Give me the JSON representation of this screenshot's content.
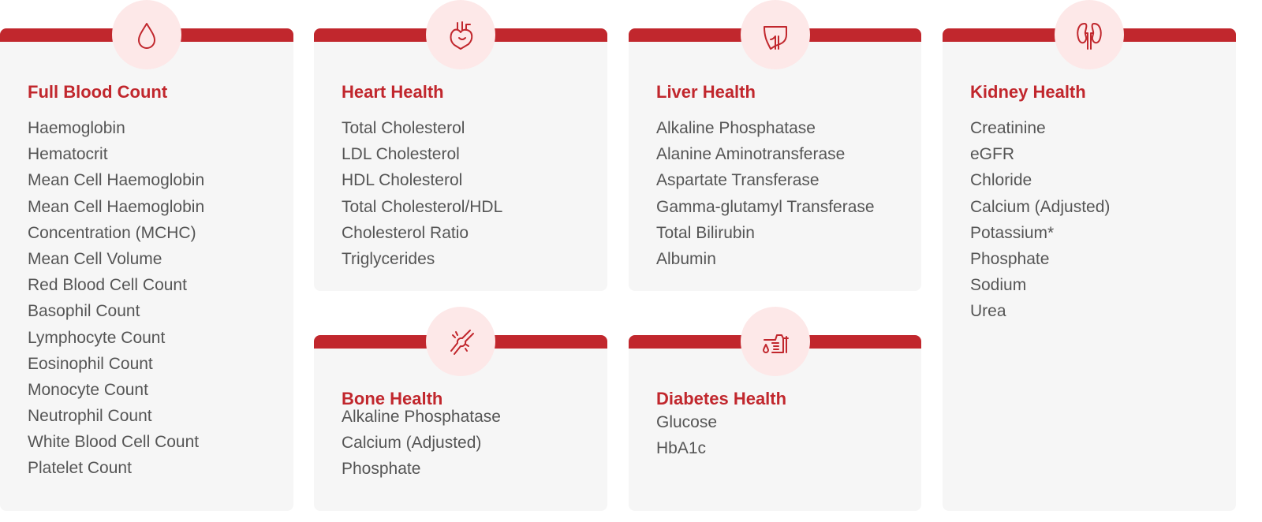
{
  "accent": "#c1272d",
  "cards": [
    {
      "id": "blood",
      "icon": "blood-drop-icon",
      "title": "Full Blood Count",
      "items": [
        "Haemoglobin",
        "Hematocrit",
        "Mean Cell Haemoglobin",
        "Mean Cell Haemoglobin",
        "Concentration (MCHC)",
        "Mean Cell Volume",
        "Red Blood Cell Count",
        "Basophil Count",
        "Lymphocyte Count",
        "Eosinophil Count",
        "Monocyte Count",
        "Neutrophil Count",
        "White Blood Cell Count",
        "Platelet Count"
      ]
    },
    {
      "id": "heart",
      "icon": "heart-organ-icon",
      "title": "Heart Health",
      "items": [
        "Total Cholesterol",
        "LDL Cholesterol",
        "HDL Cholesterol",
        "Total Cholesterol/HDL",
        "Cholesterol Ratio",
        "Triglycerides"
      ]
    },
    {
      "id": "liver",
      "icon": "liver-icon",
      "title": "Liver Health",
      "items": [
        "Alkaline Phosphatase",
        "Alanine Aminotransferase",
        "Aspartate Transferase",
        "Gamma-glutamyl Transferase",
        "Total Bilirubin",
        "Albumin"
      ]
    },
    {
      "id": "kidney",
      "icon": "kidney-icon",
      "title": "Kidney Health",
      "items": [
        "Creatinine",
        "eGFR",
        "Chloride",
        "Calcium (Adjusted)",
        "Potassium*",
        "Phosphate",
        "Sodium",
        "Urea"
      ]
    },
    {
      "id": "bone",
      "icon": "bone-joint-icon",
      "title": "Bone Health",
      "items": [
        "Alkaline Phosphatase",
        "Calcium (Adjusted)",
        "Phosphate"
      ]
    },
    {
      "id": "diabetes",
      "icon": "finger-prick-icon",
      "title": "Diabetes Health",
      "items": [
        "Glucose",
        "HbA1c"
      ]
    }
  ]
}
